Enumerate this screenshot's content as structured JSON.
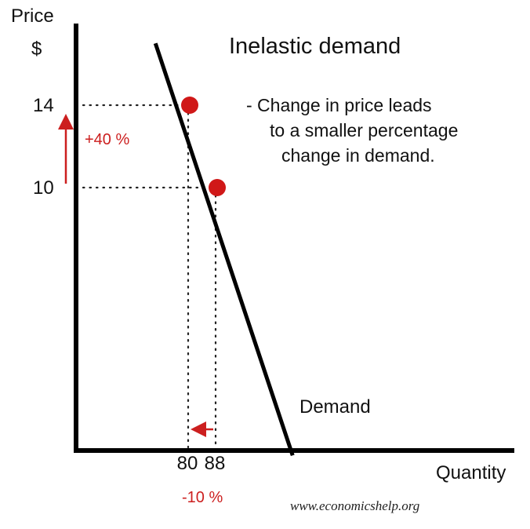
{
  "chart_data": {
    "type": "line",
    "title": "Inelastic demand",
    "xlabel": "Quantity",
    "ylabel_line1": "Price",
    "ylabel_line2": "$",
    "series": [
      {
        "name": "Demand",
        "points": [
          {
            "x": 70,
            "y": 17
          },
          {
            "x": 80,
            "y": 14
          },
          {
            "x": 88,
            "y": 10
          },
          {
            "x": 110,
            "y": -3
          }
        ]
      }
    ],
    "highlight_points": [
      {
        "x": 80,
        "y": 14
      },
      {
        "x": 88,
        "y": 10
      }
    ],
    "x_tick_labels": [
      {
        "value": 80,
        "label": "80"
      },
      {
        "value": 88,
        "label": "88"
      }
    ],
    "y_tick_labels": [
      {
        "value": 14,
        "label": "14"
      },
      {
        "value": 10,
        "label": "10"
      }
    ],
    "price_change_label": "+40 %",
    "quantity_change_label": "-10 %",
    "annotation_lines": [
      "- Change in price leads",
      "to a smaller percentage",
      "change in demand."
    ],
    "series_label": "Demand",
    "accent_color": "#cc1f1f",
    "line_color": "#000000"
  },
  "footer": {
    "source": "www.economicshelp.org"
  }
}
